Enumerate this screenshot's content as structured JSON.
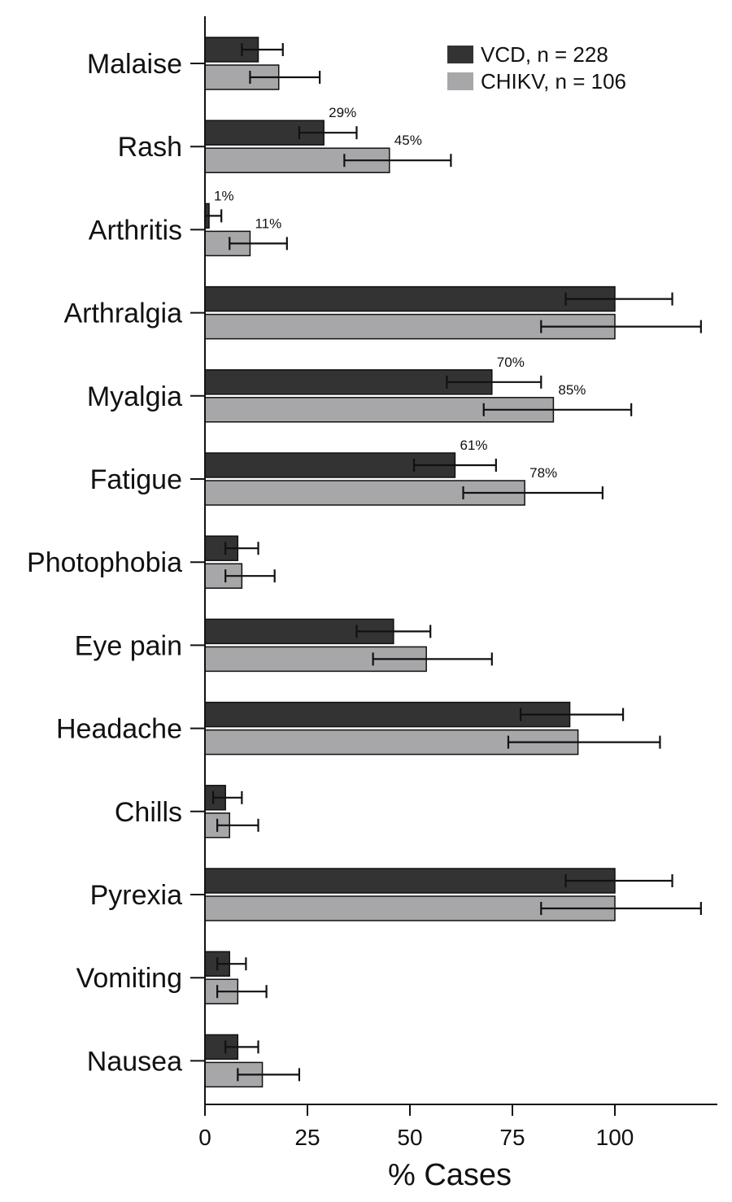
{
  "chart_data": {
    "type": "bar",
    "orientation": "horizontal",
    "categories": [
      "Malaise",
      "Rash",
      "Arthritis",
      "Arthralgia",
      "Myalgia",
      "Fatigue",
      "Photophobia",
      "Eye pain",
      "Headache",
      "Chills",
      "Pyrexia",
      "Vomiting",
      "Nausea"
    ],
    "series": [
      {
        "name": "VCD, n = 228",
        "color": "#333333",
        "values": [
          13,
          29,
          1,
          100,
          70,
          61,
          8,
          46,
          89,
          5,
          100,
          6,
          8
        ],
        "error_low": [
          9,
          23,
          0,
          88,
          59,
          51,
          5,
          37,
          77,
          2,
          88,
          3,
          5
        ],
        "error_high": [
          19,
          37,
          4,
          114,
          82,
          71,
          13,
          55,
          102,
          9,
          114,
          10,
          13
        ],
        "data_labels": [
          "",
          "29%",
          "1%",
          "",
          "70%",
          "61%",
          "",
          "",
          "",
          "",
          "",
          "",
          ""
        ]
      },
      {
        "name": "CHIKV, n = 106",
        "color": "#a7a7a9",
        "values": [
          18,
          45,
          11,
          100,
          85,
          78,
          9,
          54,
          91,
          6,
          100,
          8,
          14
        ],
        "error_low": [
          11,
          34,
          6,
          82,
          68,
          63,
          5,
          41,
          74,
          3,
          82,
          3,
          8
        ],
        "error_high": [
          28,
          60,
          20,
          121,
          104,
          97,
          17,
          70,
          111,
          13,
          121,
          15,
          23
        ],
        "data_labels": [
          "",
          "45%",
          "11%",
          "",
          "85%",
          "78%",
          "",
          "",
          "",
          "",
          "",
          "",
          ""
        ]
      }
    ],
    "xlabel": "% Cases",
    "ylabel": "",
    "xlim": [
      0,
      124
    ],
    "xticks": [
      "0",
      "25",
      "50",
      "75",
      "100"
    ],
    "legend_position": "top-right",
    "grid": false
  }
}
